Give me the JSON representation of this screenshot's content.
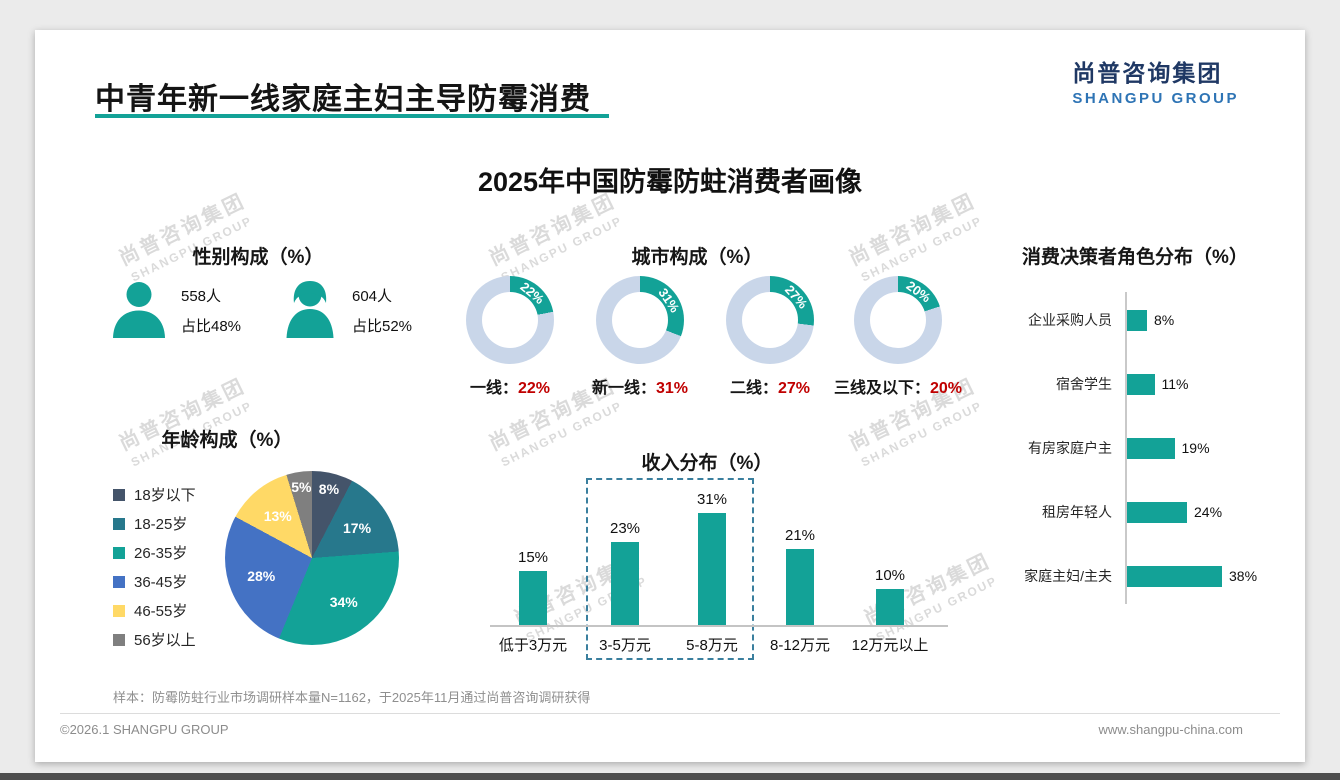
{
  "page": {
    "title": "中青年新一线家庭主妇主导防霉消费",
    "logo_cn": "尚普咨询集团",
    "logo_en": "SHANGPU GROUP",
    "main_title": "2025年中国防霉防蛀消费者画像",
    "sample_note": "样本：防霉防蛀行业市场调研样本量N=1162，于2025年11月通过尚普咨询调研获得",
    "footer_left": "©2026.1 SHANGPU GROUP",
    "footer_right": "www.shangpu-china.com",
    "watermark_cn": "尚普咨询集团",
    "watermark_en": "SHANGPU GROUP"
  },
  "colors": {
    "accent": "#13A297",
    "donut_track": "#C9D6E9",
    "red": "#C00000",
    "dash": "#3A7F9E",
    "logo_cn": "#1F3864",
    "logo_en": "#2E74B5"
  },
  "chart_data": [
    {
      "type": "pictogram",
      "title": "性别构成（%）",
      "items": [
        {
          "label": "男",
          "count": "558人",
          "share": "占比48%"
        },
        {
          "label": "女",
          "count": "604人",
          "share": "占比52%"
        }
      ]
    },
    {
      "type": "donut-set",
      "title": "城市构成（%）",
      "items": [
        {
          "label": "一线：",
          "value": 22,
          "pct": "22%"
        },
        {
          "label": "新一线：",
          "value": 31,
          "pct": "31%"
        },
        {
          "label": "二线：",
          "value": 27,
          "pct": "27%"
        },
        {
          "label": "三线及以下：",
          "value": 20,
          "pct": "20%"
        }
      ]
    },
    {
      "type": "pie",
      "title": "年龄构成（%）",
      "categories": [
        "18岁以下",
        "18-25岁",
        "26-35岁",
        "36-45岁",
        "46-55岁",
        "56岁以上"
      ],
      "values": [
        8,
        17,
        34,
        28,
        13,
        5
      ],
      "labels": [
        "8%",
        "17%",
        "34%",
        "28%",
        "13%",
        "5%"
      ],
      "colors": [
        "#44546A",
        "#27788C",
        "#13A297",
        "#4472C4",
        "#FFD966",
        "#7F7F7F"
      ]
    },
    {
      "type": "bar",
      "title": "收入分布（%）",
      "categories": [
        "低于3万元",
        "3-5万元",
        "5-8万元",
        "8-12万元",
        "12万元以上"
      ],
      "values": [
        15,
        23,
        31,
        21,
        10
      ],
      "labels": [
        "15%",
        "23%",
        "31%",
        "21%",
        "10%"
      ],
      "highlight_categories": [
        "3-5万元",
        "5-8万元"
      ]
    },
    {
      "type": "bar-horizontal",
      "title": "消费决策者角色分布（%）",
      "categories": [
        "企业采购人员",
        "宿舍学生",
        "有房家庭户主",
        "租房年轻人",
        "家庭主妇/主夫"
      ],
      "values": [
        8,
        11,
        19,
        24,
        38
      ],
      "labels": [
        "8%",
        "11%",
        "19%",
        "24%",
        "38%"
      ]
    }
  ]
}
